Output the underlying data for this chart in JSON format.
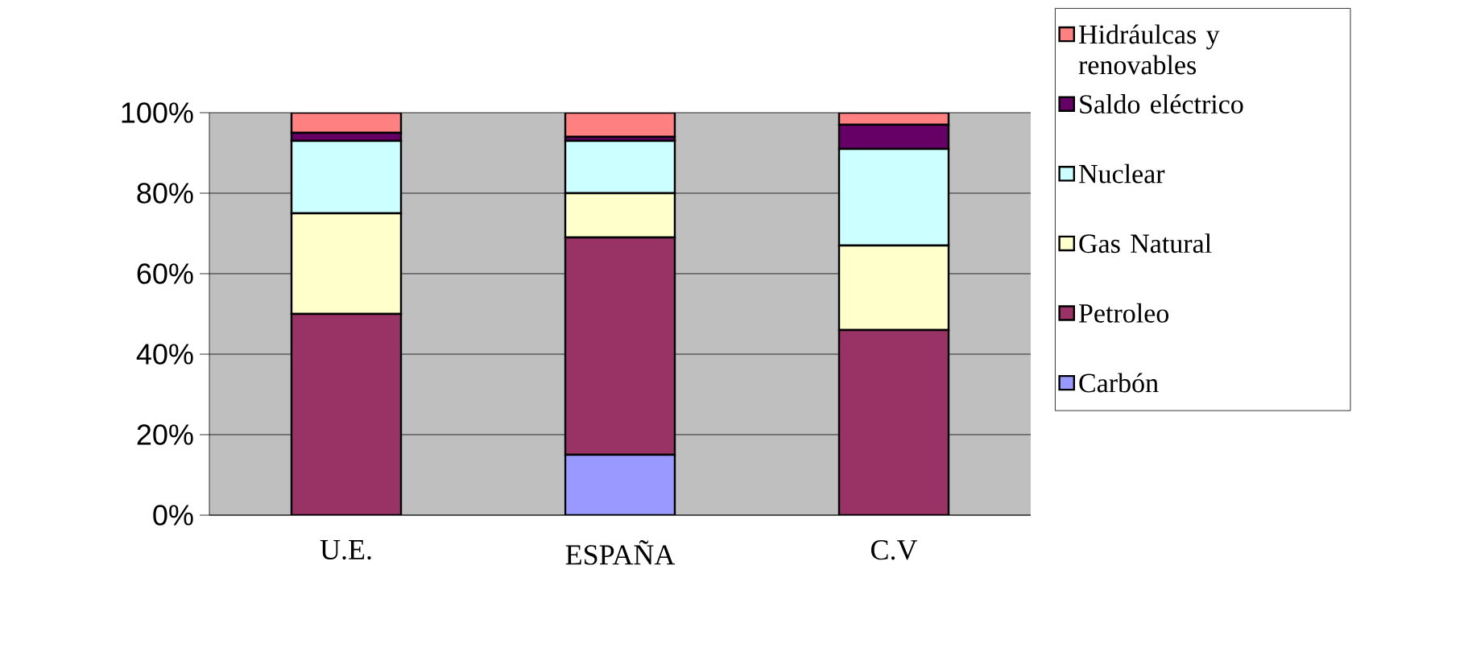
{
  "chart_data": {
    "type": "bar",
    "stacked": true,
    "categories": [
      "U.E.",
      "ESPAÑA",
      "C.V"
    ],
    "series": [
      {
        "name": "Carbón",
        "color": "#9999ff",
        "values": [
          0,
          15,
          0
        ]
      },
      {
        "name": "Petroleo",
        "color": "#993366",
        "values": [
          50,
          54,
          46
        ]
      },
      {
        "name": "Gas Natural",
        "color": "#ffffcc",
        "values": [
          25,
          11,
          21
        ]
      },
      {
        "name": "Nuclear",
        "color": "#ccffff",
        "values": [
          18,
          13,
          24
        ]
      },
      {
        "name": "Saldo eléctrico",
        "color": "#660066",
        "values": [
          2,
          1,
          6
        ]
      },
      {
        "name": "Hidráulcas y renovables",
        "color": "#ff8080",
        "values": [
          5,
          6,
          3
        ]
      }
    ],
    "ylim": [
      0,
      100
    ],
    "yticks": [
      {
        "value": 0,
        "label": "0%"
      },
      {
        "value": 20,
        "label": "20%"
      },
      {
        "value": 40,
        "label": "40%"
      },
      {
        "value": 60,
        "label": "60%"
      },
      {
        "value": 80,
        "label": "80%"
      },
      {
        "value": 100,
        "label": "100%"
      }
    ],
    "grid": "y",
    "legend": "right"
  }
}
